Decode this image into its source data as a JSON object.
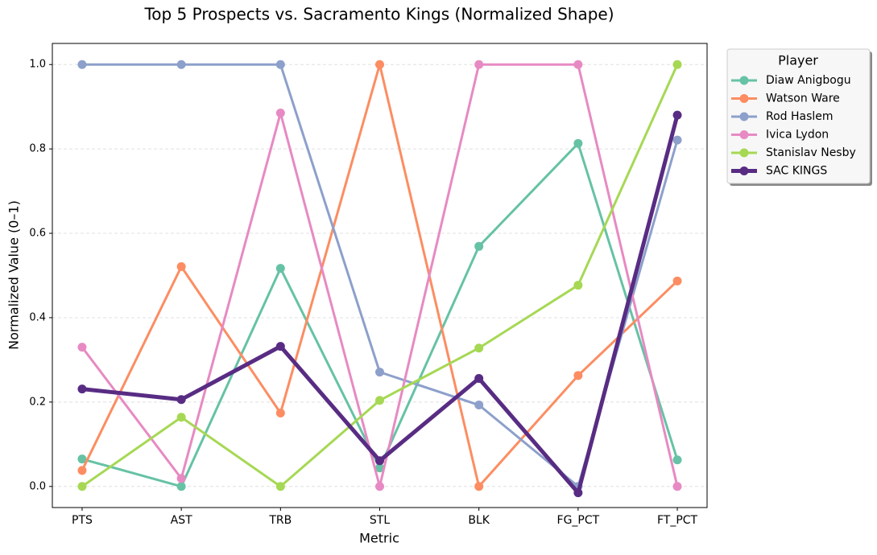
{
  "chart_data": {
    "type": "line",
    "title": "Top 5 Prospects vs. Sacramento Kings (Normalized Shape)",
    "x_label": "Metric",
    "y_label": "Normalized Value (0–1)",
    "categories": [
      "PTS",
      "AST",
      "TRB",
      "STL",
      "BLK",
      "FG_PCT",
      "FT_PCT"
    ],
    "ylim": [
      -0.05,
      1.05
    ],
    "yticks": [
      {
        "value": 0,
        "label": "0.0"
      },
      0.2,
      0.4,
      0.6,
      0.8,
      {
        "value": 1,
        "label": "1.0"
      }
    ],
    "grid": true,
    "legend_title": "Player",
    "legend_position": "outside-upper-right",
    "series": [
      {
        "name": "Diaw Anigbogu",
        "color": "#66c2a5",
        "values": [
          0.065,
          0.0,
          0.517,
          0.044,
          0.569,
          0.813,
          0.063
        ]
      },
      {
        "name": "Watson Ware",
        "color": "#fc8d62",
        "values": [
          0.038,
          0.521,
          0.174,
          1.0,
          0.0,
          0.263,
          0.487
        ]
      },
      {
        "name": "Rod Haslem",
        "color": "#8da0cb",
        "values": [
          1.0,
          1.0,
          1.0,
          0.271,
          0.193,
          0.0,
          0.821
        ]
      },
      {
        "name": "Ivica Lydon",
        "color": "#e78ac3",
        "values": [
          0.33,
          0.019,
          0.885,
          0.0,
          1.0,
          1.0,
          0.0
        ]
      },
      {
        "name": "Stanislav Nesby",
        "color": "#a6d854",
        "values": [
          0.0,
          0.164,
          0.0,
          0.204,
          0.328,
          0.477,
          1.0
        ]
      },
      {
        "name": "SAC KINGS",
        "color": "#582c83",
        "values": [
          0.231,
          0.206,
          0.332,
          0.061,
          0.256,
          -0.015,
          0.88
        ]
      }
    ]
  }
}
